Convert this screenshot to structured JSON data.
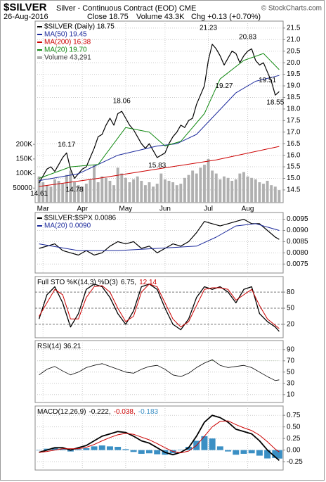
{
  "header": {
    "symbol": "$SILVER",
    "description": "Silver - Continuous Contract (EOD) CME",
    "copyright": "© StockCharts.com",
    "date": "26-Aug-2016",
    "close": "Close 18.75",
    "volume": "Volume 43.3K",
    "change": "Chg +0.13 (+0.70%)"
  },
  "chart_data": [
    {
      "type": "line",
      "xlim": [
        -1,
        62
      ],
      "xticks": [
        {
          "value": 1,
          "label": "Mar"
        },
        {
          "value": 11,
          "label": "Apr"
        },
        {
          "value": 22,
          "label": "May"
        },
        {
          "value": 32,
          "label": "Jun"
        },
        {
          "value": 43,
          "label": "Jul"
        },
        {
          "value": 53,
          "label": "Aug"
        }
      ],
      "ylim": [
        13.95,
        21.8
      ],
      "yticks": [
        14.5,
        {
          "value": 15,
          "label": "15.0"
        },
        15.5,
        {
          "value": 16,
          "label": "16.0"
        },
        16.5,
        {
          "value": 17,
          "label": "17.0"
        },
        17.5,
        {
          "value": 18,
          "label": "18.0"
        },
        18.5,
        {
          "value": 19,
          "label": "19.0"
        },
        19.5,
        {
          "value": 20,
          "label": "20.0"
        },
        20.5,
        {
          "value": 21,
          "label": "21.0"
        },
        21.5
      ],
      "y2lim": [
        0,
        623000
      ],
      "y2ticks": [
        50000,
        {
          "value": 100000,
          "label": "100K"
        },
        {
          "value": 150000,
          "label": "150K"
        },
        {
          "value": 200000,
          "label": "200K"
        }
      ],
      "grid": true,
      "x": [
        0,
        1,
        2,
        3,
        4,
        5,
        6,
        7,
        8,
        9,
        10,
        11,
        12,
        13,
        14,
        15,
        16,
        17,
        18,
        19,
        20,
        21,
        22,
        23,
        24,
        25,
        26,
        27,
        28,
        29,
        30,
        31,
        32,
        33,
        34,
        35,
        36,
        37,
        38,
        39,
        40,
        41,
        42,
        43,
        44,
        45,
        46,
        47,
        48,
        49,
        50,
        51,
        52,
        53,
        54,
        55,
        56,
        57,
        58,
        59,
        60,
        61
      ],
      "series": [
        {
          "name": "$SILVER (Daily) 18.75",
          "color": "#000000",
          "width": 1.2,
          "values": [
            14.8,
            15.1,
            15.4,
            15.5,
            15.3,
            15.6,
            15.9,
            16.1,
            15.4,
            15.0,
            15.2,
            15.4,
            15.5,
            15.9,
            16.3,
            16.8,
            16.9,
            17.3,
            17.6,
            17.3,
            17.8,
            17.9,
            17.6,
            17.3,
            17.1,
            16.8,
            16.5,
            16.3,
            16.5,
            16.2,
            15.9,
            16.0,
            16.1,
            16.5,
            16.8,
            17.0,
            17.3,
            17.2,
            17.5,
            17.6,
            18.2,
            18.6,
            19.0,
            20.1,
            20.8,
            20.6,
            20.3,
            19.9,
            20.2,
            20.5,
            20.4,
            20.0,
            20.3,
            20.5,
            20.6,
            20.1,
            19.9,
            20.0,
            19.6,
            19.2,
            18.6,
            18.75
          ]
        },
        {
          "name": "MA(50) 19.45",
          "color": "#1c2a9c",
          "width": 1,
          "x": [
            0,
            10,
            20,
            30,
            35,
            40,
            45,
            50,
            55,
            61
          ],
          "values": [
            14.9,
            15.2,
            16.0,
            16.4,
            16.5,
            16.9,
            17.8,
            18.7,
            19.2,
            19.45
          ]
        },
        {
          "name": "MA(200) 16.38",
          "color": "#cc0000",
          "width": 1,
          "x": [
            0,
            15,
            30,
            45,
            61
          ],
          "values": [
            14.65,
            15.0,
            15.4,
            15.8,
            16.38
          ]
        },
        {
          "name": "MA(20) 19.70",
          "color": "#138a13",
          "width": 1,
          "x": [
            0,
            8,
            15,
            22,
            28,
            32,
            36,
            42,
            46,
            52,
            57,
            61
          ],
          "values": [
            15.0,
            15.5,
            15.6,
            17.2,
            17.0,
            16.4,
            16.6,
            17.8,
            19.3,
            20.1,
            20.4,
            19.7
          ]
        },
        {
          "name": "Volume 43,291",
          "color": "#b0b0b0",
          "type": "bar",
          "axis": "y2",
          "values": [
            90000,
            70000,
            60000,
            55000,
            80000,
            75000,
            65000,
            95000,
            110000,
            70000,
            60000,
            55000,
            65000,
            80000,
            130000,
            70000,
            90000,
            85000,
            75000,
            60000,
            120000,
            100000,
            85000,
            70000,
            80000,
            90000,
            75000,
            60000,
            70000,
            55000,
            65000,
            100000,
            80000,
            75000,
            70000,
            60000,
            65000,
            85000,
            95000,
            110000,
            100000,
            120000,
            130000,
            150000,
            110000,
            100000,
            80000,
            90000,
            85000,
            75000,
            80000,
            100000,
            105000,
            90000,
            85000,
            80000,
            70000,
            65000,
            75000,
            60000,
            55000,
            43291
          ]
        }
      ],
      "annotations": [
        {
          "label": "14.61",
          "x": 0,
          "value": 14.61,
          "position": "below"
        },
        {
          "label": "16.17",
          "x": 7,
          "value": 16.17,
          "position": "above"
        },
        {
          "label": "14.78",
          "x": 9,
          "value": 14.78,
          "position": "below"
        },
        {
          "label": "18.06",
          "x": 21,
          "value": 18.06,
          "position": "above"
        },
        {
          "label": "15.83",
          "x": 30,
          "value": 15.83,
          "position": "below"
        },
        {
          "label": "21.23",
          "x": 43,
          "value": 21.23,
          "position": "above"
        },
        {
          "label": "19.27",
          "x": 47,
          "value": 19.27,
          "position": "below"
        },
        {
          "label": "20.83",
          "x": 53,
          "value": 20.83,
          "position": "above"
        },
        {
          "label": "19.51",
          "x": 58,
          "value": 19.51,
          "position": "below"
        },
        {
          "label": "18.55",
          "x": 60,
          "value": 18.55,
          "position": "below"
        }
      ]
    },
    {
      "type": "line",
      "ylim": [
        0.0071,
        0.0098
      ],
      "yticks": [
        {
          "value": 0.0075,
          "label": "0.0075"
        },
        {
          "value": 0.008,
          "label": "0.0080"
        },
        0.0085,
        {
          "value": 0.009,
          "label": "0.0090"
        },
        0.0095
      ],
      "grid": true,
      "x": [
        0,
        2,
        4,
        6,
        8,
        10,
        12,
        14,
        16,
        18,
        20,
        22,
        24,
        26,
        28,
        30,
        32,
        34,
        36,
        38,
        40,
        42,
        44,
        46,
        48,
        50,
        52,
        54,
        56,
        58,
        60,
        61
      ],
      "series": [
        {
          "name": "$SILVER:$SPX 0.0086",
          "color": "#000000",
          "width": 1.2,
          "values": [
            0.0082,
            0.0083,
            0.0084,
            0.0081,
            0.008,
            0.0079,
            0.0081,
            0.0079,
            0.008,
            0.0083,
            0.0085,
            0.0084,
            0.0085,
            0.0082,
            0.0083,
            0.008,
            0.0082,
            0.0084,
            0.0083,
            0.0085,
            0.0089,
            0.0094,
            0.0093,
            0.0092,
            0.0093,
            0.0094,
            0.0095,
            0.0093,
            0.0093,
            0.009,
            0.0087,
            0.0086
          ]
        },
        {
          "name": "MA(20) 0.0090",
          "color": "#1c2a9c",
          "width": 1,
          "x": [
            0,
            10,
            20,
            30,
            40,
            45,
            50,
            55,
            61
          ],
          "values": [
            0.0084,
            0.0081,
            0.0081,
            0.0082,
            0.0083,
            0.0087,
            0.0092,
            0.0093,
            0.009
          ]
        }
      ]
    },
    {
      "type": "line",
      "ylim": [
        -5,
        109
      ],
      "yticks": [
        20,
        50,
        80
      ],
      "grid": true,
      "title_parts": [
        {
          "text": "Full STO %K(14,3) %D(3)",
          "color": "#000000"
        },
        {
          "text": "6.75,",
          "color": "#000000"
        },
        {
          "text": "12.14",
          "color": "#cc0000"
        }
      ],
      "x": [
        0,
        2,
        4,
        6,
        8,
        10,
        12,
        14,
        16,
        18,
        20,
        22,
        24,
        26,
        28,
        30,
        32,
        34,
        36,
        38,
        40,
        42,
        44,
        46,
        48,
        50,
        52,
        54,
        56,
        58,
        60,
        61
      ],
      "series": [
        {
          "color": "#000000",
          "width": 1.3,
          "values": [
            30,
            75,
            90,
            60,
            15,
            40,
            85,
            95,
            90,
            70,
            40,
            20,
            45,
            90,
            95,
            85,
            50,
            20,
            10,
            30,
            70,
            90,
            85,
            90,
            80,
            60,
            85,
            90,
            40,
            25,
            15,
            6.75
          ]
        },
        {
          "color": "#cc0000",
          "width": 1,
          "values": [
            35,
            60,
            85,
            75,
            30,
            30,
            70,
            90,
            92,
            80,
            50,
            25,
            35,
            80,
            95,
            90,
            60,
            30,
            15,
            25,
            55,
            85,
            88,
            88,
            85,
            65,
            75,
            85,
            55,
            30,
            18,
            12.14
          ]
        }
      ]
    },
    {
      "type": "line",
      "ylim": [
        -4,
        106
      ],
      "yticks": [
        10,
        30,
        50,
        70,
        90
      ],
      "grid": true,
      "overbought_fill": {
        "level": 70,
        "color": "#5f8a4e"
      },
      "title_parts": [
        {
          "text": "RSI(14) 36.21",
          "color": "#000000"
        }
      ],
      "x": [
        0,
        2,
        4,
        6,
        8,
        10,
        12,
        14,
        16,
        18,
        20,
        22,
        24,
        26,
        28,
        30,
        32,
        34,
        36,
        38,
        40,
        42,
        44,
        46,
        48,
        50,
        52,
        54,
        56,
        58,
        60,
        61
      ],
      "series": [
        {
          "color": "#000000",
          "width": 0.8,
          "values": [
            45,
            55,
            60,
            52,
            45,
            50,
            58,
            62,
            65,
            60,
            55,
            50,
            48,
            55,
            60,
            62,
            55,
            45,
            42,
            48,
            58,
            66,
            72,
            62,
            58,
            60,
            62,
            58,
            50,
            42,
            35,
            36.21
          ]
        }
      ]
    },
    {
      "type": "line",
      "ylim": [
        -0.43,
        0.95
      ],
      "yticks": [
        -0.25,
        {
          "value": 0,
          "label": "0.00"
        },
        0.25,
        {
          "value": 0.5,
          "label": "0.50"
        },
        0.75
      ],
      "grid": true,
      "title_parts": [
        {
          "text": "MACD(12,26,9)",
          "color": "#000000"
        },
        {
          "text": "-0.222,",
          "color": "#000000"
        },
        {
          "text": "-0.038,",
          "color": "#cc0000"
        },
        {
          "text": "-0.183",
          "color": "#3a8fc4"
        }
      ],
      "x": [
        0,
        2,
        4,
        6,
        8,
        10,
        12,
        14,
        16,
        18,
        20,
        22,
        24,
        26,
        28,
        30,
        32,
        34,
        36,
        38,
        40,
        42,
        44,
        46,
        48,
        50,
        52,
        54,
        56,
        58,
        60,
        61
      ],
      "series": [
        {
          "color": "#3a8fc4",
          "type": "histogram",
          "values": [
            0,
            0.03,
            0.05,
            0.02,
            -0.03,
            0.02,
            0.04,
            0.08,
            0.1,
            0.08,
            0.07,
            0.02,
            -0.04,
            -0.08,
            -0.07,
            -0.09,
            -0.1,
            -0.07,
            0.01,
            0.07,
            0.2,
            0.3,
            0.25,
            0.08,
            -0.03,
            -0.1,
            -0.08,
            -0.07,
            -0.12,
            -0.18,
            -0.17,
            -0.183
          ]
        },
        {
          "color": "#000000",
          "width": 1.8,
          "values": [
            -0.05,
            0,
            0.05,
            0.05,
            0,
            0.05,
            0.1,
            0.2,
            0.3,
            0.35,
            0.4,
            0.38,
            0.3,
            0.2,
            0.15,
            0.05,
            -0.05,
            -0.1,
            -0.05,
            0.05,
            0.3,
            0.6,
            0.75,
            0.7,
            0.6,
            0.45,
            0.4,
            0.35,
            0.2,
            0,
            -0.15,
            -0.222
          ]
        },
        {
          "color": "#cc0000",
          "width": 1,
          "values": [
            -0.05,
            -0.03,
            0,
            0.03,
            0.03,
            0.03,
            0.06,
            0.12,
            0.2,
            0.27,
            0.33,
            0.36,
            0.34,
            0.28,
            0.22,
            0.14,
            0.05,
            -0.03,
            -0.06,
            -0.02,
            0.1,
            0.3,
            0.5,
            0.62,
            0.63,
            0.55,
            0.48,
            0.42,
            0.32,
            0.18,
            0.02,
            -0.038
          ]
        }
      ]
    }
  ]
}
